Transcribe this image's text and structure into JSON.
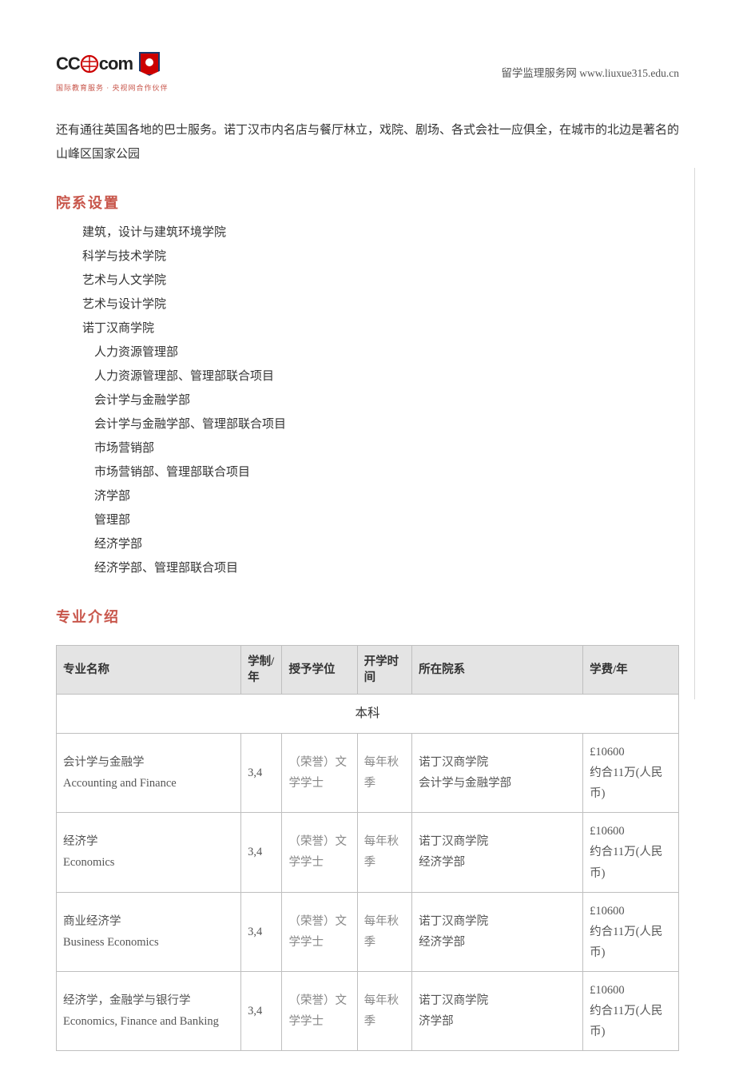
{
  "header": {
    "logo_text_left": "CC",
    "logo_text_right": "com",
    "logo_subtitle": "国际教育服务 · 央视网合作伙伴",
    "site_label": "留学监理服务网 www.liuxue315.edu.cn"
  },
  "intro_paragraph": "还有通往英国各地的巴士服务。诺丁汉市内名店与餐厅林立，戏院、剧场、各式会社一应俱全，在城市的北边是著名的山峰区国家公园",
  "sections": {
    "departments_title": "院系设置",
    "majors_title": "专业介绍"
  },
  "departments": [
    "建筑，设计与建筑环境学院",
    "科学与技术学院",
    "艺术与人文学院",
    "艺术与设计学院",
    "诺丁汉商学院"
  ],
  "sub_departments": [
    "人力资源管理部",
    "人力资源管理部、管理部联合项目",
    "会计学与金融学部",
    "会计学与金融学部、管理部联合项目",
    "市场营销部",
    "市场营销部、管理部联合项目",
    "济学部",
    "管理部",
    "经济学部",
    "经济学部、管理部联合项目"
  ],
  "table": {
    "caption": "本科",
    "columns": {
      "name": "专业名称",
      "duration": "学制/年",
      "degree": "授予学位",
      "term": "开学时间",
      "dept": "所在院系",
      "fee": "学费/年"
    },
    "rows": [
      {
        "name_cn": "会计学与金融学",
        "name_en": "Accounting and Finance",
        "duration": "3,4",
        "degree": "（荣誉）文学学士",
        "term": "每年秋季",
        "dept_cn": "诺丁汉商学院",
        "dept_sub": "会计学与金融学部",
        "fee_gbp": "£10600",
        "fee_cny": "约合11万(人民币)"
      },
      {
        "name_cn": "经济学",
        "name_en": "Economics",
        "duration": "3,4",
        "degree": "（荣誉）文学学士",
        "term": "每年秋季",
        "dept_cn": "诺丁汉商学院",
        "dept_sub": "经济学部",
        "fee_gbp": "£10600",
        "fee_cny": "约合11万(人民币)"
      },
      {
        "name_cn": "商业经济学",
        "name_en": "Business Economics",
        "duration": "3,4",
        "degree": "（荣誉）文学学士",
        "term": "每年秋季",
        "dept_cn": "诺丁汉商学院",
        "dept_sub": "经济学部",
        "fee_gbp": "£10600",
        "fee_cny": "约合11万(人民币)"
      },
      {
        "name_cn": "经济学，金融学与银行学",
        "name_en": "Economics, Finance and Banking",
        "duration": "3,4",
        "degree": "（荣誉）文学学士",
        "term": "每年秋季",
        "dept_cn": "诺丁汉商学院",
        "dept_sub": "济学部",
        "fee_gbp": "£10600",
        "fee_cny": "约合11万(人民币)"
      }
    ]
  },
  "styles": {
    "accent_color": "#c8564b",
    "border_color": "#bfbfbf",
    "header_bg": "#e4e4e4",
    "text_color": "#333333",
    "muted_text": "#888888"
  }
}
